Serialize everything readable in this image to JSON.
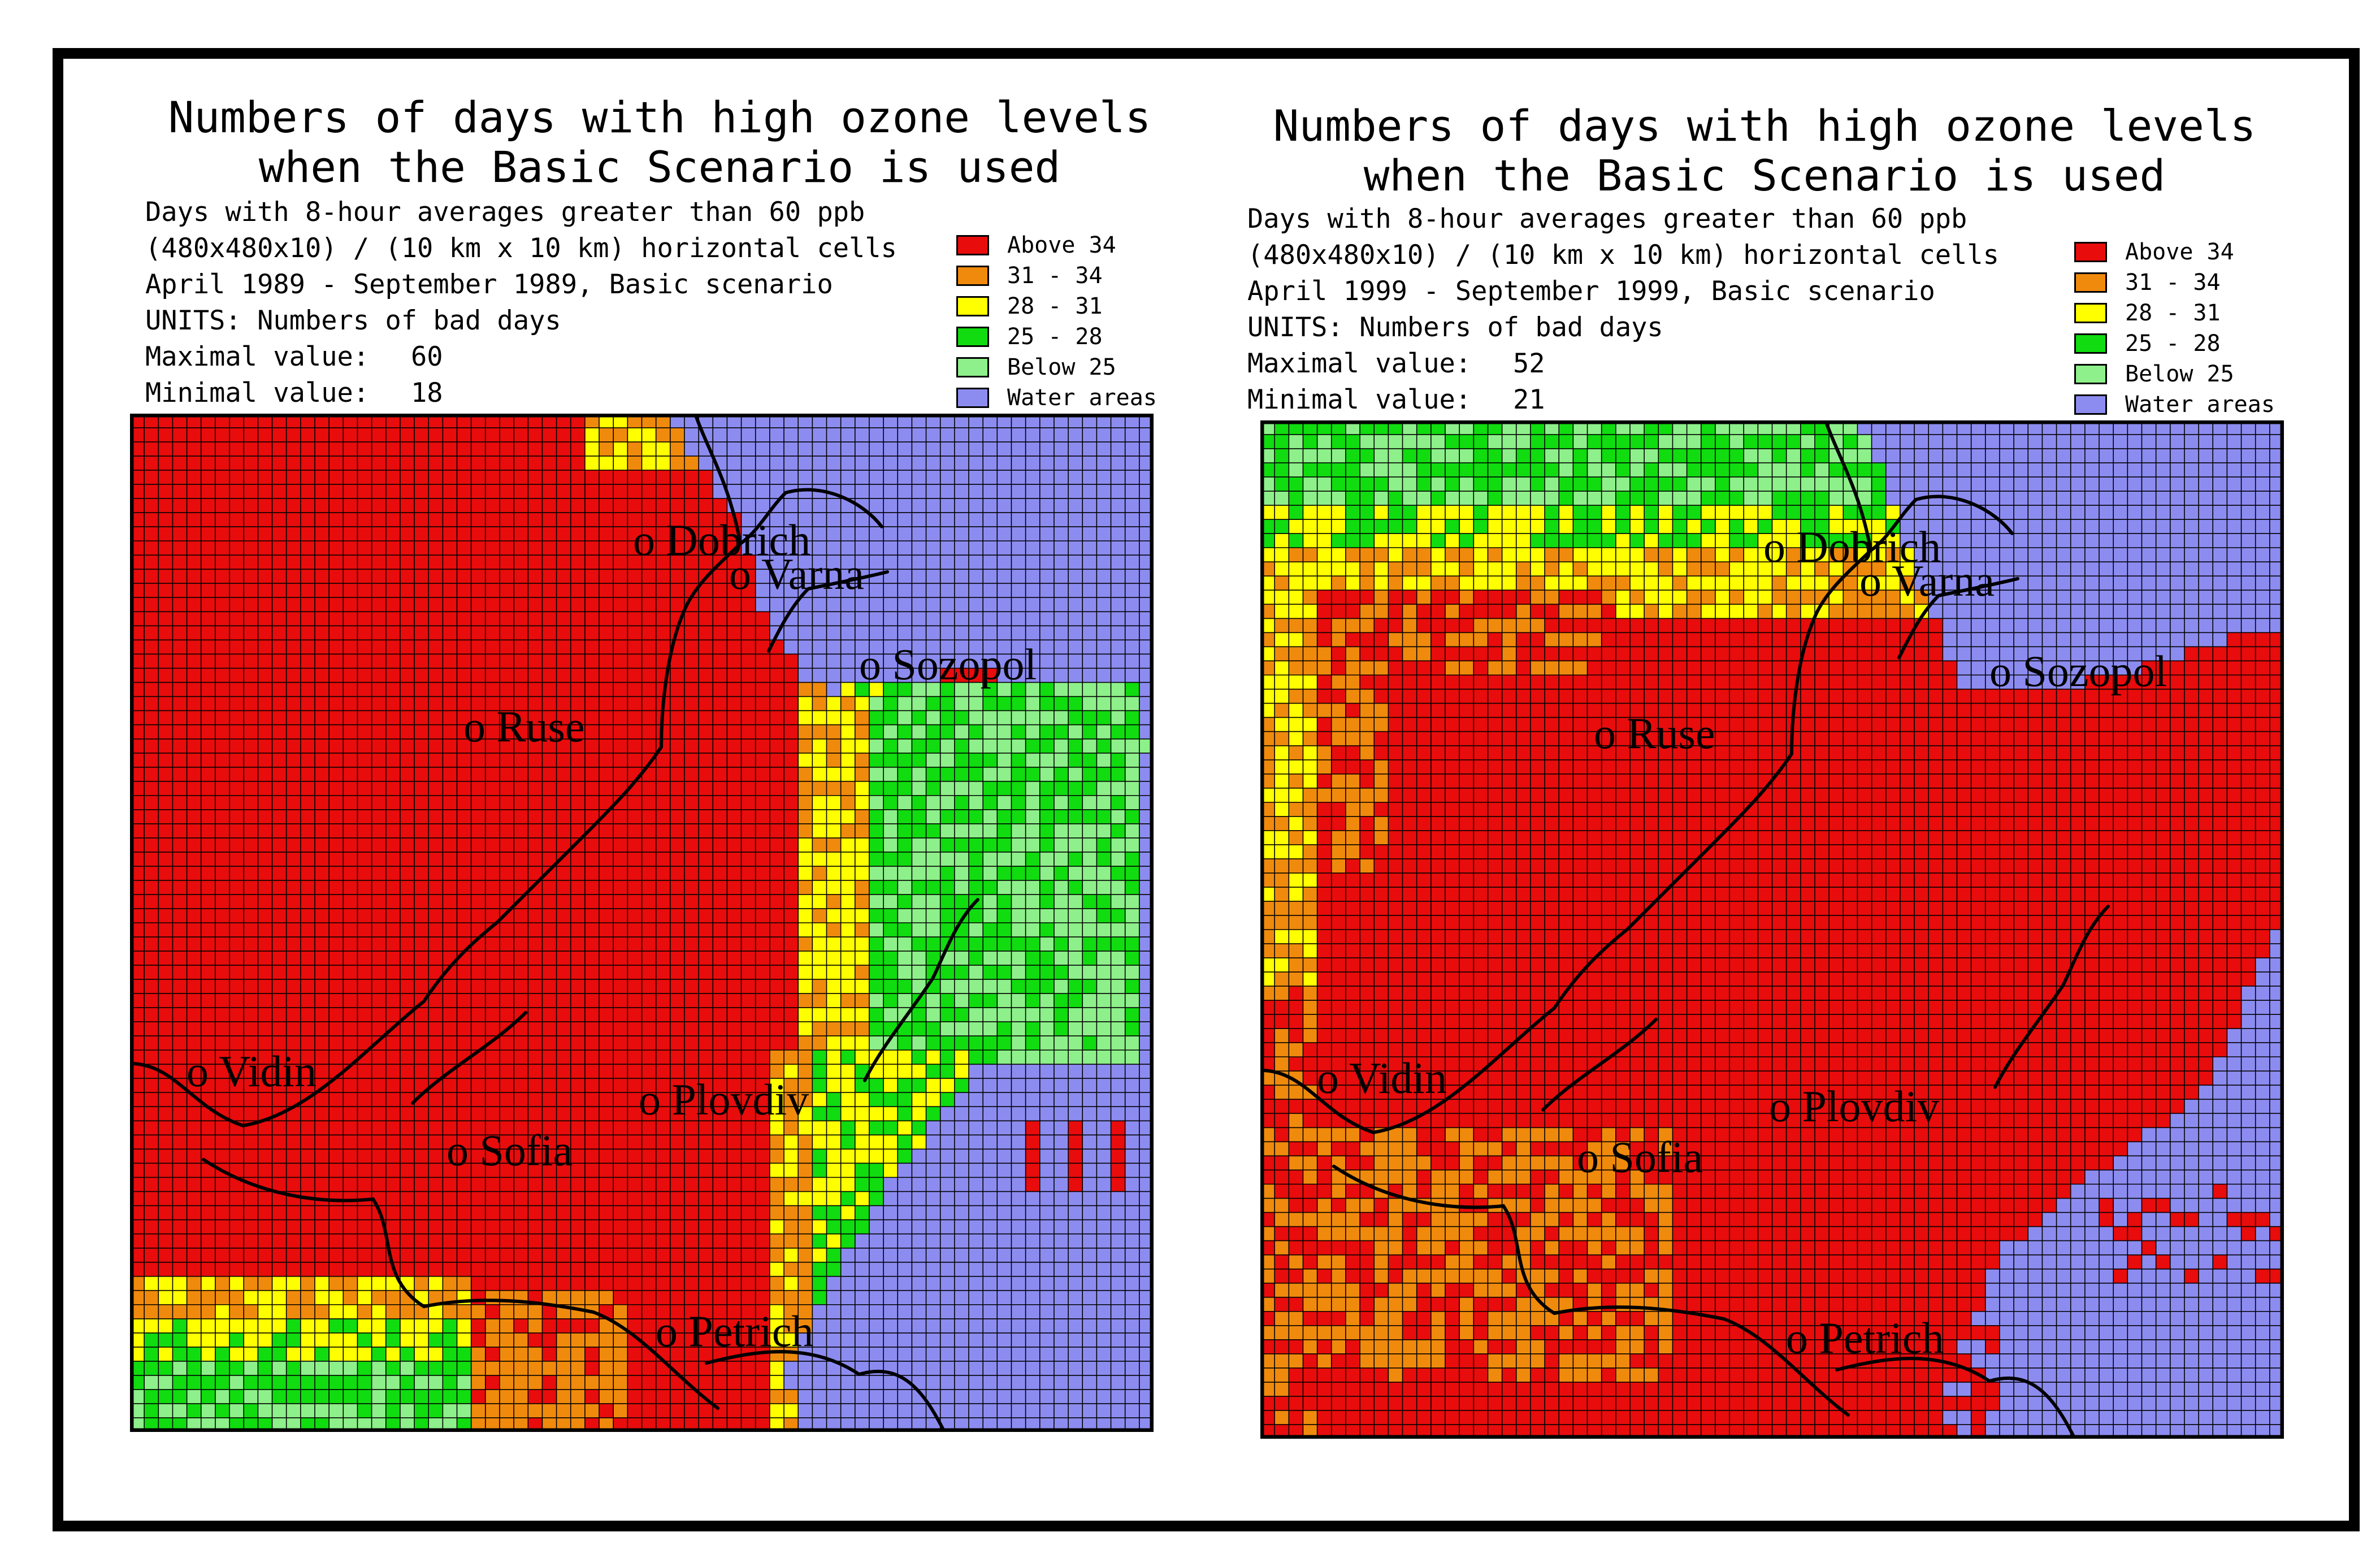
{
  "colors": {
    "above": "#e80c0c",
    "c31_34": "#f08a0c",
    "c28_31": "#ffff00",
    "c25_28": "#10dc10",
    "below": "#8ef08a",
    "water": "#8c8cf0"
  },
  "legend": [
    {
      "label": "Above  34",
      "color_key": "above"
    },
    {
      "label": " 31 -  34",
      "color_key": "c31_34"
    },
    {
      "label": " 28 -  31",
      "color_key": "c28_31"
    },
    {
      "label": " 25 -  28",
      "color_key": "c25_28"
    },
    {
      "label": "Below  25",
      "color_key": "below"
    },
    {
      "label": "Water areas",
      "color_key": "water"
    }
  ],
  "cities": [
    "o Dobrich",
    "o Varna",
    "o Sozopol",
    "o Ruse",
    "o Vidin",
    "o Plovdiv",
    "o Sofia",
    "o Petrich"
  ],
  "panels": [
    {
      "title_line1": "Numbers of days with high ozone levels",
      "title_line2": "when the Basic Scenario is used",
      "info": {
        "line1": "Days with 8-hour averages greater than 60 ppb",
        "line2": "(480x480x10) / (10 km x 10 km) horizontal cells",
        "line3": "April 1989 - September 1989, Basic scenario",
        "line4": "UNITS: Numbers of bad days",
        "max_label": "Maximal value:",
        "max_value": "60",
        "min_label": "Minimal value:",
        "min_value": "18"
      }
    },
    {
      "title_line1": "Numbers of days with high ozone levels",
      "title_line2": "when the Basic Scenario is used",
      "info": {
        "line1": "Days with 8-hour averages greater than 60 ppb",
        "line2": "(480x480x10) / (10 km x 10 km) horizontal cells",
        "line3": "April 1999 - September 1999, Basic scenario",
        "line4": "UNITS: Numbers of bad days",
        "max_label": "Maximal value:",
        "max_value": "52",
        "min_label": "Minimal value:",
        "min_value": "21"
      }
    }
  ]
}
